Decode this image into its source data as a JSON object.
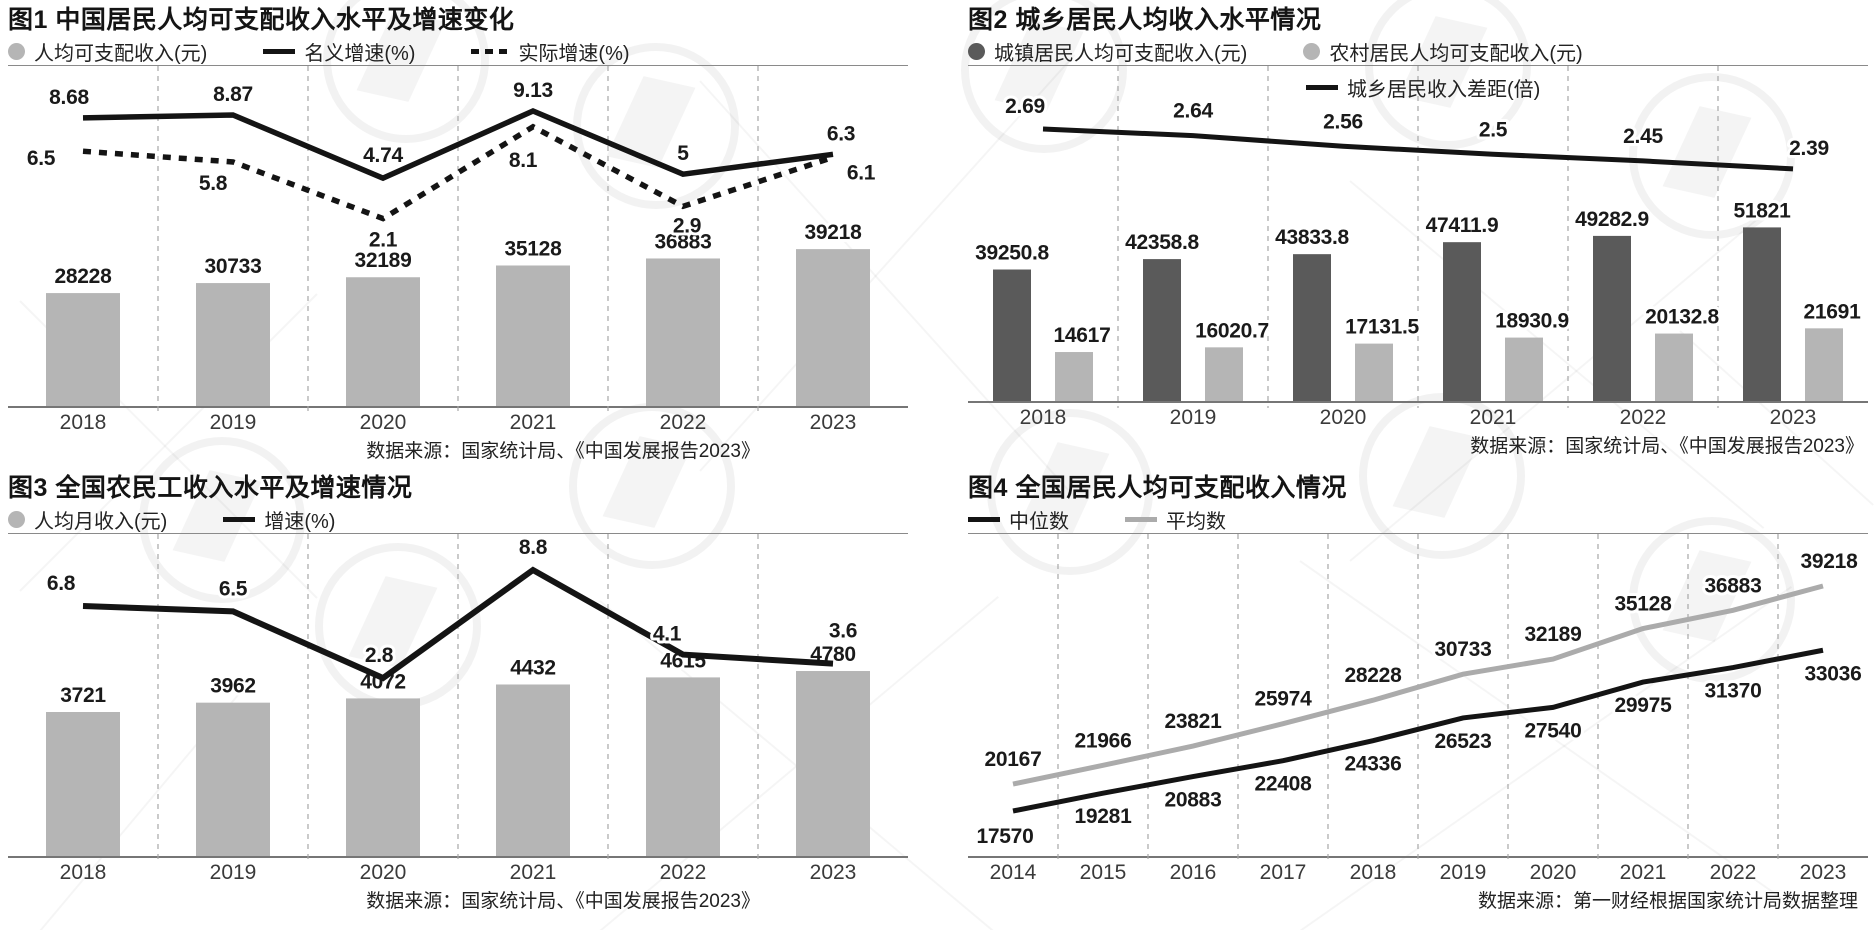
{
  "colors": {
    "bar_light": "#b5b5b5",
    "bar_dark": "#5a5a5a",
    "line_black": "#141414",
    "line_gray": "#ababab",
    "grid": "#a8a8a8",
    "axis": "#767676"
  },
  "chart_data": [
    {
      "id": "fig1",
      "type": "bar+line",
      "title": "图1 中国居民人均可支配收入水平及增速变化",
      "source": "数据来源：国家统计局、《中国发展报告2023》",
      "categories": [
        "2018",
        "2019",
        "2020",
        "2021",
        "2022",
        "2023"
      ],
      "bar_series": [
        {
          "name": "人均可支配收入(元)",
          "values": [
            28228,
            30733,
            32189,
            35128,
            36883,
            39218
          ],
          "color_key": "bar_light"
        }
      ],
      "line_series": [
        {
          "name": "名义增速(%)",
          "values": [
            8.68,
            8.87,
            4.74,
            9.13,
            5,
            6.3
          ],
          "style": "solid",
          "color_key": "line_black"
        },
        {
          "name": "实际增速(%)",
          "values": [
            6.5,
            5.8,
            2.1,
            8.1,
            2.9,
            6.1
          ],
          "style": "dashed",
          "color_key": "line_black"
        }
      ],
      "legend_position": "top",
      "grid": "vertical-dashed"
    },
    {
      "id": "fig2",
      "type": "grouped-bar+line",
      "title": "图2 城乡居民人均收入水平情况",
      "source": "数据来源：国家统计局、《中国发展报告2023》",
      "categories": [
        "2018",
        "2019",
        "2020",
        "2021",
        "2022",
        "2023"
      ],
      "bar_series": [
        {
          "name": "城镇居民人均可支配收入(元)",
          "values": [
            39250.8,
            42358.8,
            43833.8,
            47411.9,
            49282.9,
            51821
          ],
          "color_key": "bar_dark"
        },
        {
          "name": "农村居民人均可支配收入(元)",
          "values": [
            14617,
            16020.7,
            17131.5,
            18930.9,
            20132.8,
            21691
          ],
          "color_key": "bar_light"
        }
      ],
      "line_series": [
        {
          "name": "城乡居民收入差距(倍)",
          "values": [
            2.69,
            2.64,
            2.56,
            2.5,
            2.45,
            2.39
          ],
          "style": "solid",
          "color_key": "line_black",
          "legend_in_plot": true
        }
      ],
      "legend_position": "top",
      "grid": "vertical-dashed"
    },
    {
      "id": "fig3",
      "type": "bar+line",
      "title": "图3 全国农民工收入水平及增速情况",
      "source": "数据来源：国家统计局、《中国发展报告2023》",
      "categories": [
        "2018",
        "2019",
        "2020",
        "2021",
        "2022",
        "2023"
      ],
      "bar_series": [
        {
          "name": "人均月收入(元)",
          "values": [
            3721,
            3962,
            4072,
            4432,
            4615,
            4780
          ],
          "color_key": "bar_light"
        }
      ],
      "line_series": [
        {
          "name": "增速(%)",
          "values": [
            6.8,
            6.5,
            2.8,
            8.8,
            4.1,
            3.6
          ],
          "style": "solid",
          "color_key": "line_black"
        }
      ],
      "legend_position": "top",
      "grid": "vertical-dashed"
    },
    {
      "id": "fig4",
      "type": "line",
      "title": "图4 全国居民人均可支配收入情况",
      "source": "数据来源：第一财经根据国家统计局数据整理",
      "categories": [
        "2014",
        "2015",
        "2016",
        "2017",
        "2018",
        "2019",
        "2020",
        "2021",
        "2022",
        "2023"
      ],
      "bar_series": [],
      "line_series": [
        {
          "name": "中位数",
          "values": [
            17570,
            19281,
            20883,
            22408,
            24336,
            26523,
            27540,
            29975,
            31370,
            33036
          ],
          "style": "solid",
          "color_key": "line_black"
        },
        {
          "name": "平均数",
          "values": [
            20167,
            21966,
            23821,
            25974,
            28228,
            30733,
            32189,
            35128,
            36883,
            39218
          ],
          "style": "solid",
          "color_key": "line_gray"
        }
      ],
      "legend_position": "top",
      "grid": "vertical-dashed"
    }
  ]
}
